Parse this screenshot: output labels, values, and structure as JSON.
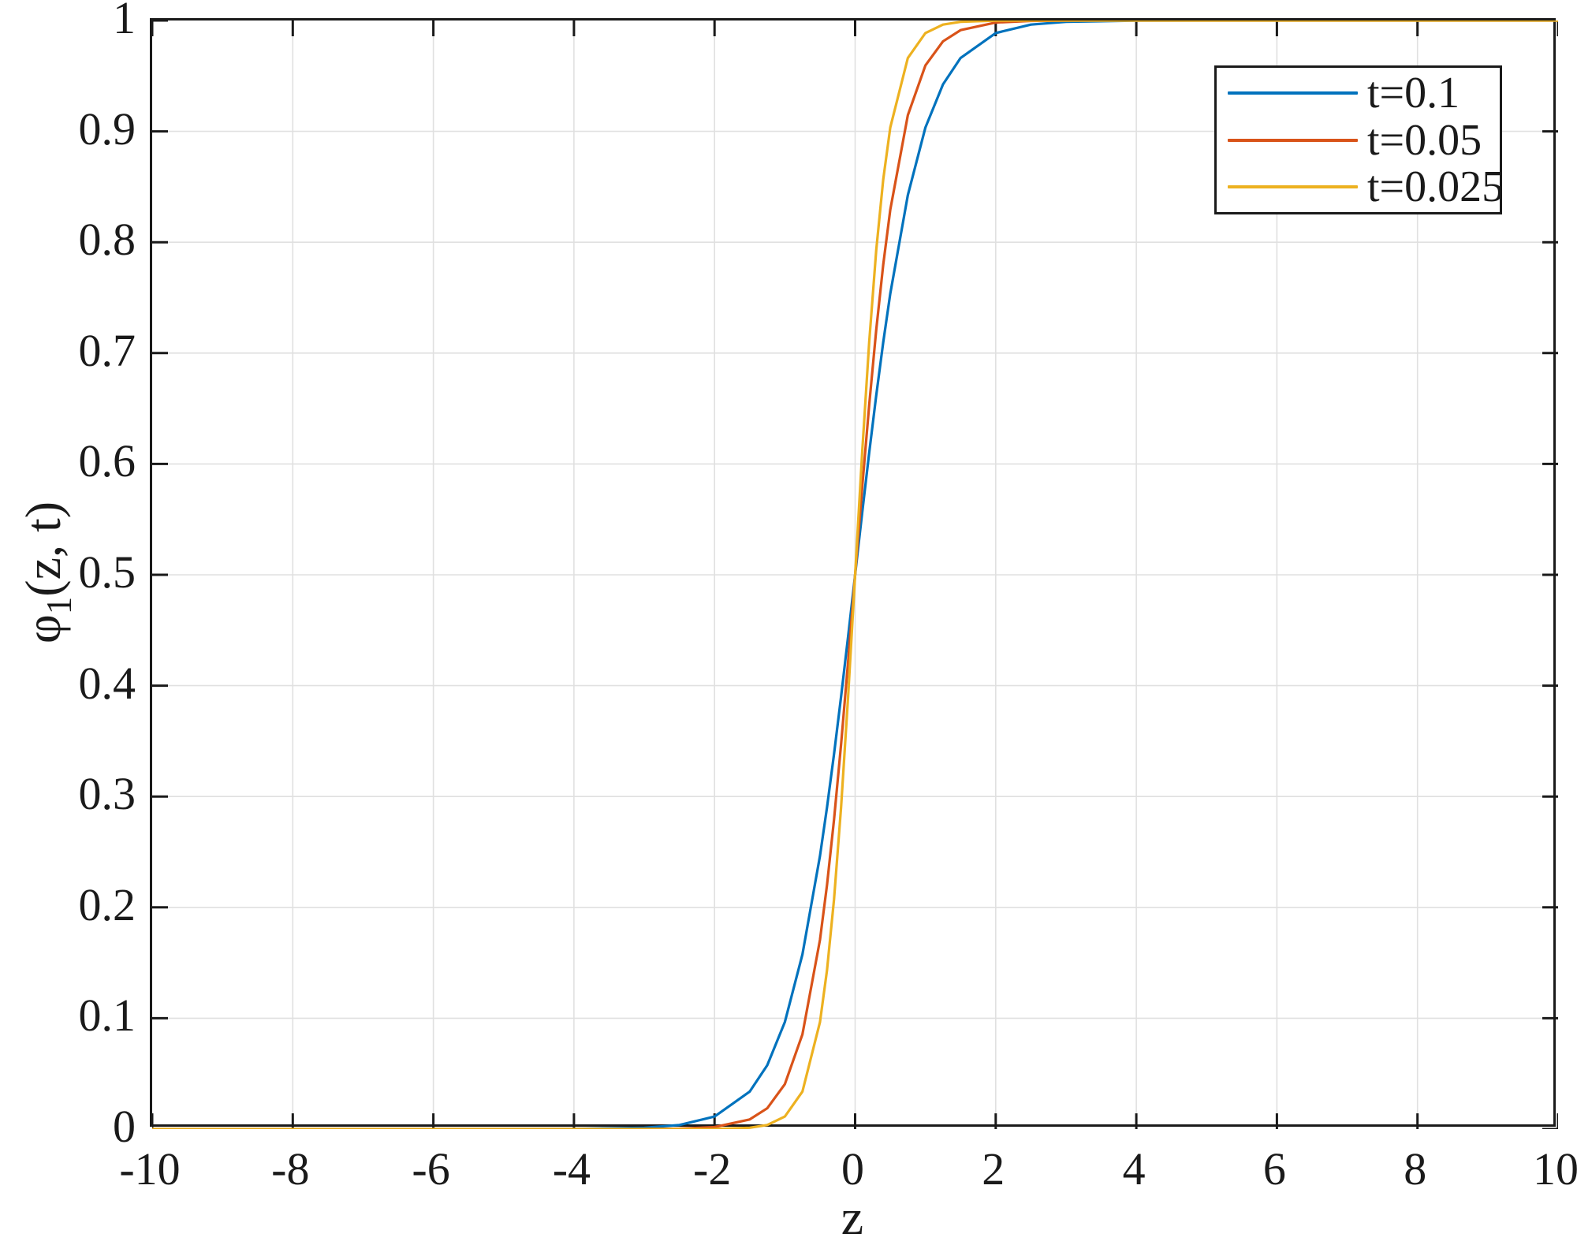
{
  "figure": {
    "background": "#ffffff",
    "axis_color": "#1a1a1a",
    "grid_color": "#e0e0e0",
    "text_color": "#1a1a1a"
  },
  "chart_data": {
    "type": "line",
    "title": "",
    "xlabel": "z",
    "ylabel": "φ1(z, t)",
    "ylabel_parts": {
      "symbol": "φ",
      "subscript": "1",
      "rest": "(z, t)"
    },
    "xlim": [
      -10,
      10
    ],
    "ylim": [
      0,
      1
    ],
    "grid": true,
    "x_ticks": [
      -10,
      -8,
      -6,
      -4,
      -2,
      0,
      2,
      4,
      6,
      8,
      10
    ],
    "x_tick_labels": [
      "-10",
      "-8",
      "-6",
      "-4",
      "-2",
      "0",
      "2",
      "4",
      "6",
      "8",
      "10"
    ],
    "y_ticks": [
      0,
      0.1,
      0.2,
      0.3,
      0.4,
      0.5,
      0.6,
      0.7,
      0.8,
      0.9,
      1
    ],
    "y_tick_labels": [
      "0",
      "0.1",
      "0.2",
      "0.3",
      "0.4",
      "0.5",
      "0.6",
      "0.7",
      "0.8",
      "0.9",
      "1"
    ],
    "legend": {
      "position": "top-right",
      "entries": [
        {
          "label": "t=0.1",
          "color": "#0072BD"
        },
        {
          "label": "t=0.05",
          "color": "#D95319"
        },
        {
          "label": "t=0.025",
          "color": "#EDB120"
        }
      ]
    },
    "x": [
      -10,
      -8,
      -6,
      -4,
      -3,
      -2.5,
      -2,
      -1.5,
      -1.25,
      -1,
      -0.75,
      -0.5,
      -0.4,
      -0.3,
      -0.2,
      -0.1,
      0,
      0.1,
      0.2,
      0.3,
      0.4,
      0.5,
      0.75,
      1,
      1.25,
      1.5,
      2,
      2.5,
      3,
      4,
      6,
      8,
      10
    ],
    "series": [
      {
        "name": "t=0.1",
        "color": "#0072BD",
        "values": [
          0,
          0,
          0,
          0.0001,
          0.0012,
          0.0037,
          0.0113,
          0.0338,
          0.0576,
          0.0965,
          0.1575,
          0.2464,
          0.2902,
          0.3383,
          0.39,
          0.4443,
          0.5,
          0.5557,
          0.61,
          0.6617,
          0.7098,
          0.7536,
          0.8425,
          0.9035,
          0.9424,
          0.9662,
          0.9887,
          0.9963,
          0.9988,
          0.9999,
          1,
          1,
          1
        ]
      },
      {
        "name": "t=0.05",
        "color": "#D95319",
        "values": [
          0,
          0,
          0,
          0,
          0.0001,
          0.0004,
          0.0018,
          0.0087,
          0.0188,
          0.0405,
          0.0854,
          0.1707,
          0.2202,
          0.2792,
          0.3469,
          0.4216,
          0.5,
          0.5784,
          0.6531,
          0.7208,
          0.7798,
          0.8293,
          0.9146,
          0.9595,
          0.9812,
          0.9913,
          0.9982,
          0.9996,
          0.9999,
          1,
          1,
          1,
          1
        ]
      },
      {
        "name": "t=0.025",
        "color": "#EDB120",
        "values": [
          0,
          0,
          0,
          0,
          0,
          0,
          0.0001,
          0.0012,
          0.0037,
          0.0113,
          0.0338,
          0.0965,
          0.1433,
          0.2073,
          0.2902,
          0.39,
          0.5,
          0.61,
          0.7098,
          0.7927,
          0.8567,
          0.9035,
          0.9662,
          0.9887,
          0.9963,
          0.9988,
          0.9999,
          1,
          1,
          1,
          1,
          1,
          1
        ]
      }
    ]
  }
}
